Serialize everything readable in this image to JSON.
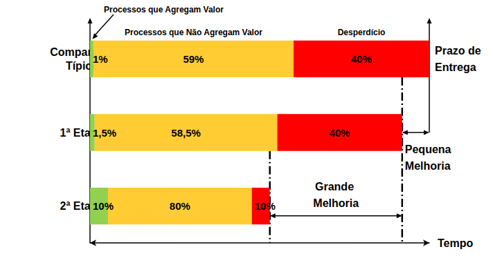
{
  "chart_data": {
    "type": "bar",
    "orientation": "horizontal",
    "stacked": true,
    "data_labels": true,
    "tick_labels": "y",
    "categories": [
      "Companhia Típica",
      "1ª Etapa",
      "2ª Etapa"
    ],
    "series": [
      {
        "name": "Processos que Agregam Valor",
        "color": "#92d050",
        "values": [
          1,
          1.5,
          10
        ],
        "value_labels": [
          "1%",
          "1,5%",
          "10%"
        ]
      },
      {
        "name": "Processos que Não Agregam Valor",
        "color": "#ffcc33",
        "values": [
          59,
          58.5,
          80
        ],
        "value_labels": [
          "59%",
          "58,5%",
          "80%"
        ]
      },
      {
        "name": "Desperdício",
        "color": "#ff0000",
        "values": [
          40,
          40,
          10
        ],
        "value_labels": [
          "40%",
          "40%",
          "10%"
        ]
      }
    ],
    "lead_time": [
      100,
      92,
      53
    ],
    "lead_time_label": "Prazo de Entrega",
    "x_label": "Tempo",
    "xlim": [
      0,
      100
    ],
    "xticks": [],
    "annotations": [
      {
        "text": "Pequena Melhoria",
        "between": [
          "Companhia Típica",
          "1ª Etapa"
        ]
      },
      {
        "text": "Grande Melhoria",
        "between": [
          "1ª Etapa",
          "2ª Etapa"
        ]
      }
    ]
  }
}
